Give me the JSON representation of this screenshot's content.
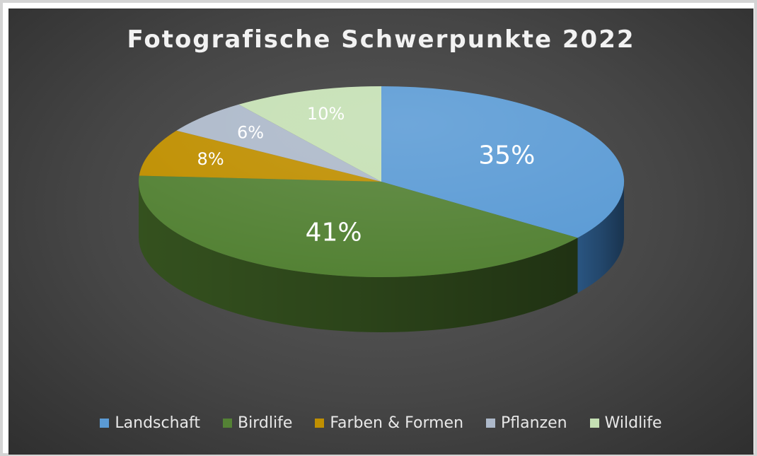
{
  "chart_data": {
    "type": "pie",
    "title": "Fotografische Schwerpunkte 2022",
    "categories": [
      "Landschaft",
      "Birdlife",
      "Farben & Formen",
      "Pflanzen",
      "Wildlife"
    ],
    "values": [
      35,
      41,
      8,
      6,
      10
    ],
    "data_labels": [
      "35%",
      "41%",
      "8%",
      "6%",
      "10%"
    ],
    "colors": [
      "#5b9bd5",
      "#548235",
      "#bf8f00",
      "#adb9ca",
      "#c5e0b4"
    ],
    "side_colors": [
      "#2e5e8f",
      "#3a5a22",
      "#7d5e00",
      "#6e7786",
      "#7f9575"
    ],
    "label_colors": [
      "#ffffff",
      "#ffffff",
      "#ffffff",
      "#ffffff",
      "#ffffff"
    ],
    "style": "3d",
    "legend_position": "bottom"
  }
}
